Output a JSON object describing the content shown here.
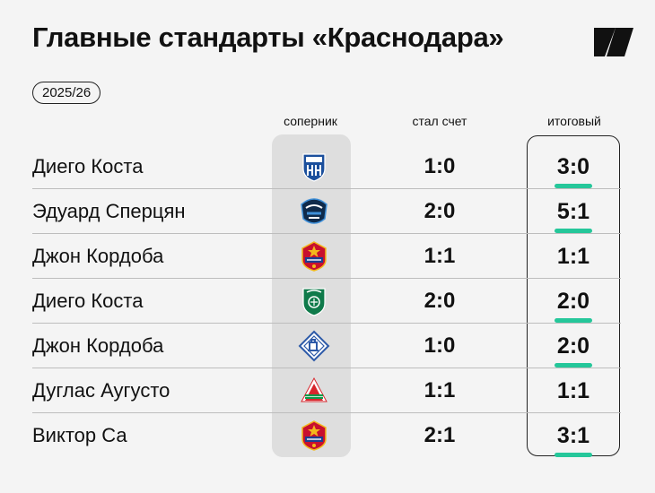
{
  "title": "Главные стандарты «Краснодара»",
  "season": "2025/26",
  "columns": {
    "opponent": "соперник",
    "score": "стал счет",
    "final": "итоговый"
  },
  "colors": {
    "accent": "#25c79a",
    "background": "#f4f4f4",
    "highlight": "#dedede"
  },
  "rows": [
    {
      "player": "Диего Коста",
      "opponent_icon": "pari-nn-crest",
      "score": "1:0",
      "final": "3:0",
      "final_highlight": true
    },
    {
      "player": "Эдуард Сперцян",
      "opponent_icon": "sochi-crest",
      "score": "2:0",
      "final": "5:1",
      "final_highlight": true
    },
    {
      "player": "Джон Кордоба",
      "opponent_icon": "cska-crest",
      "score": "1:1",
      "final": "1:1",
      "final_highlight": false
    },
    {
      "player": "Диего Коста",
      "opponent_icon": "akhmat-crest",
      "score": "2:0",
      "final": "2:0",
      "final_highlight": true
    },
    {
      "player": "Джон Кордоба",
      "opponent_icon": "dynamo-crest",
      "score": "1:0",
      "final": "2:0",
      "final_highlight": true
    },
    {
      "player": "Дуглас Аугусто",
      "opponent_icon": "lokomotiv-crest",
      "score": "1:1",
      "final": "1:1",
      "final_highlight": false
    },
    {
      "player": "Виктор Са",
      "opponent_icon": "cska-crest",
      "score": "2:1",
      "final": "3:1",
      "final_highlight": true
    }
  ]
}
